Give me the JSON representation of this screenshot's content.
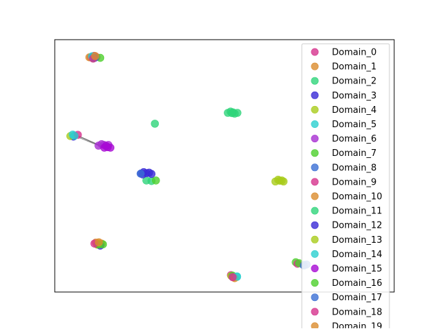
{
  "chart_data": {
    "type": "scatter",
    "title": "",
    "xlabel": "",
    "ylabel": "",
    "axis_ticks": "hidden",
    "grid": false,
    "legend_location": "upper right (extends below plot)",
    "xlim": [
      0,
      100
    ],
    "ylim": [
      0,
      100
    ],
    "series": [
      {
        "name": "Domain_0",
        "color": "#d6338d",
        "points": [
          [
            10.6,
            93.0
          ],
          [
            12.3,
            93.1
          ],
          [
            11.6,
            93.6
          ],
          [
            5.8,
            62.0
          ],
          [
            12.5,
            19.0
          ],
          [
            51.9,
            6.7
          ]
        ]
      },
      {
        "name": "Domain_1",
        "color": "#db8c2e",
        "points": [
          [
            10.2,
            93.0
          ],
          [
            12.5,
            18.8
          ],
          [
            13.8,
            19.2
          ],
          [
            52.8,
            5.8
          ]
        ]
      },
      {
        "name": "Domain_2",
        "color": "#2fd47a",
        "points": [
          [
            11.4,
            92.6
          ],
          [
            29.5,
            66.7
          ],
          [
            27.0,
            44.2
          ],
          [
            28.5,
            44.0
          ]
        ]
      },
      {
        "name": "Domain_3",
        "color": "#3a2bd6",
        "points": [
          [
            5.5,
            61.6
          ],
          [
            13.4,
            18.4
          ],
          [
            11.3,
            93.1
          ]
        ]
      },
      {
        "name": "Domain_4",
        "color": "#a9cc1c",
        "points": [
          [
            4.6,
            61.8
          ],
          [
            12.8,
            19.3
          ],
          [
            52.0,
            6.4
          ]
        ]
      },
      {
        "name": "Domain_5",
        "color": "#2ccfcf",
        "points": [
          [
            5.3,
            62.4
          ],
          [
            52.5,
            6.0
          ],
          [
            53.7,
            6.0
          ],
          [
            11.0,
            93.4
          ]
        ]
      },
      {
        "name": "Domain_6",
        "color": "#a830d2",
        "points": [
          [
            12.9,
            58.0
          ],
          [
            14.5,
            58.3
          ],
          [
            15.8,
            58.3
          ],
          [
            13.8,
            58.6
          ]
        ]
      },
      {
        "name": "Domain_7",
        "color": "#4ecf2d",
        "points": [
          [
            13.4,
            92.8
          ],
          [
            14.2,
            18.9
          ],
          [
            71.0,
            11.8
          ],
          [
            52.4,
            6.5
          ]
        ]
      },
      {
        "name": "Domain_8",
        "color": "#3b6fd4",
        "points": [
          [
            11.8,
            92.8
          ],
          [
            73.2,
            10.8
          ],
          [
            74.2,
            10.9
          ]
        ]
      },
      {
        "name": "Domain_9",
        "color": "#d6338d",
        "points": [
          [
            6.8,
            62.3
          ],
          [
            71.5,
            11.2
          ],
          [
            11.3,
            92.5
          ]
        ]
      },
      {
        "name": "Domain_10",
        "color": "#db8c2e",
        "points": [
          [
            12.1,
            19.6
          ],
          [
            53.0,
            5.5
          ]
        ]
      },
      {
        "name": "Domain_11",
        "color": "#2fd47a",
        "points": [
          [
            51.0,
            71.0
          ],
          [
            52.5,
            71.2
          ],
          [
            53.8,
            71.0
          ],
          [
            51.8,
            71.5
          ],
          [
            53.0,
            70.7
          ],
          [
            52.2,
            70.9
          ]
        ]
      },
      {
        "name": "Domain_12",
        "color": "#3a2bd6",
        "points": [
          [
            25.5,
            47.0
          ],
          [
            27.0,
            47.1
          ],
          [
            28.5,
            46.8
          ],
          [
            26.2,
            47.5
          ],
          [
            27.8,
            47.3
          ],
          [
            25.9,
            46.6
          ]
        ]
      },
      {
        "name": "Domain_13",
        "color": "#a9cc1c",
        "points": [
          [
            65.0,
            43.8
          ],
          [
            66.3,
            44.1
          ],
          [
            67.4,
            43.8
          ],
          [
            65.8,
            44.5
          ],
          [
            66.9,
            44.2
          ]
        ]
      },
      {
        "name": "Domain_14",
        "color": "#2ccfcf",
        "points": [
          [
            5.8,
            61.9
          ],
          [
            53.7,
            6.2
          ]
        ]
      },
      {
        "name": "Domain_15",
        "color": "#a80ad4",
        "points": [
          [
            14.6,
            57.2
          ],
          [
            15.6,
            57.4
          ],
          [
            16.4,
            57.2
          ],
          [
            15.1,
            57.9
          ]
        ]
      },
      {
        "name": "Domain_16",
        "color": "#4ecf2d",
        "points": [
          [
            72.0,
            11.4
          ],
          [
            29.8,
            44.2
          ],
          [
            12.9,
            18.8
          ]
        ]
      },
      {
        "name": "Domain_17",
        "color": "#3b6fd4",
        "points": [
          [
            73.4,
            10.5
          ],
          [
            25.3,
            46.9
          ]
        ]
      },
      {
        "name": "Domain_18",
        "color": "#d6338d",
        "points": [
          [
            11.7,
            19.2
          ],
          [
            52.4,
            5.9
          ]
        ]
      },
      {
        "name": "Domain_19",
        "color": "#db8c2e",
        "points": [
          [
            13.0,
            19.7
          ],
          [
            11.9,
            93.5
          ]
        ]
      }
    ],
    "connectors": [
      {
        "from": [
          7.0,
          61.8
        ],
        "to": [
          13.8,
          57.8
        ],
        "color": "#555555"
      }
    ]
  }
}
